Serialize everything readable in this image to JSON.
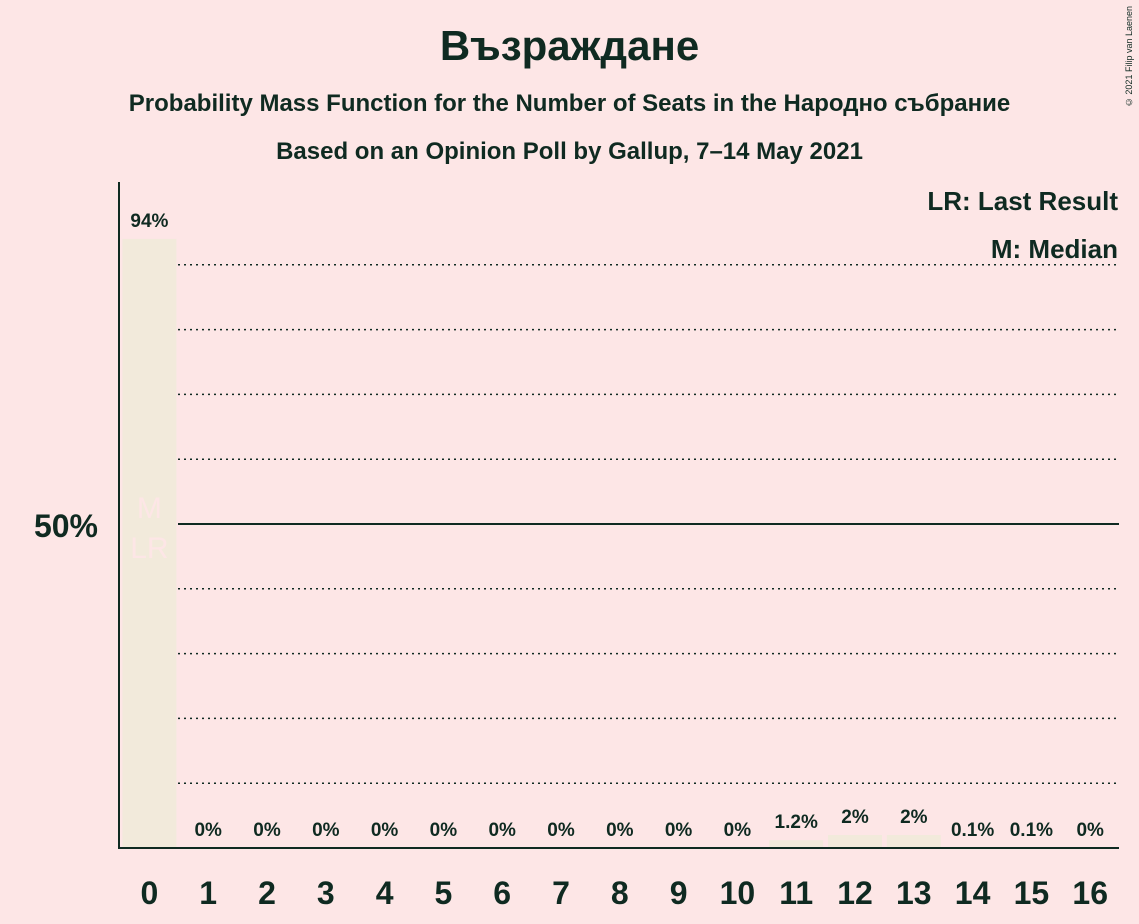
{
  "title": "Възраждане",
  "subtitle": "Probability Mass Function for the Number of Seats in the Народно събрание",
  "subtitle2": "Based on an Opinion Poll by Gallup, 7–14 May 2021",
  "copyright": "© 2021 Filip van Laenen",
  "legend": {
    "lr": "LR: Last Result",
    "m": "M: Median"
  },
  "colors": {
    "background": "#fde6e6",
    "bar": "#f2eadb",
    "text": "#0f2a21",
    "bar_marker_text": "#fde6e6"
  },
  "chart_data": {
    "type": "bar",
    "categories": [
      "0",
      "1",
      "2",
      "3",
      "4",
      "5",
      "6",
      "7",
      "8",
      "9",
      "10",
      "11",
      "12",
      "13",
      "14",
      "15",
      "16"
    ],
    "values": [
      94,
      0,
      0,
      0,
      0,
      0,
      0,
      0,
      0,
      0,
      0,
      1.2,
      2,
      2,
      0.1,
      0.1,
      0
    ],
    "labels": [
      "94%",
      "0%",
      "0%",
      "0%",
      "0%",
      "0%",
      "0%",
      "0%",
      "0%",
      "0%",
      "0%",
      "1.2%",
      "2%",
      "2%",
      "0.1%",
      "0.1%",
      "0%"
    ],
    "ylim": [
      0,
      100
    ],
    "ytick_label": "50%",
    "ytick_value": 50,
    "gridlines": [
      10,
      20,
      30,
      40,
      60,
      70,
      80,
      90
    ],
    "median_index": 0,
    "last_result_index": 0,
    "median_marker": "M",
    "last_result_marker": "LR"
  }
}
